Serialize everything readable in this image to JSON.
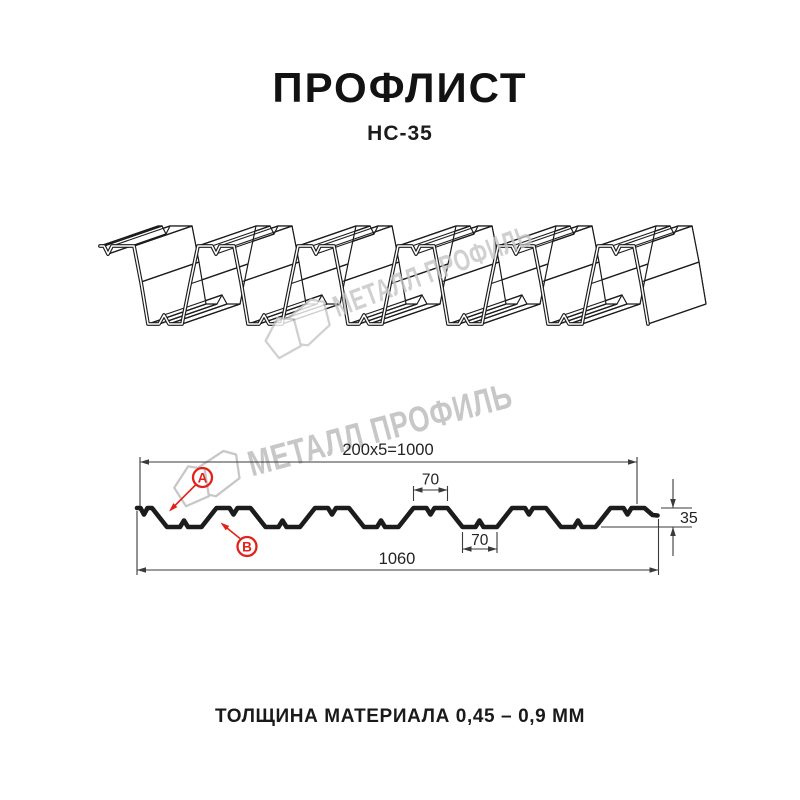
{
  "header": {
    "title": "ПРОФЛИСТ",
    "subtitle": "НС-35"
  },
  "watermark": {
    "text": "МЕТАЛЛ ПРОФИЛЬ",
    "color": "#c5c5c5",
    "logo": "metall-profil-logo"
  },
  "section": {
    "dimensions": {
      "module": "200x5=1000",
      "crest_top": "70",
      "trough_bottom": "70",
      "profile_height": "35",
      "overall_width": "1060"
    },
    "markers": {
      "a": "A",
      "b": "B"
    },
    "colors": {
      "line": "#1c1c1c",
      "dimension": "#3a3a3a",
      "marker": "#e2221a"
    }
  },
  "footer": {
    "thickness_note": "ТОЛЩИНА МАТЕРИАЛА 0,45 – 0,9 ММ"
  }
}
